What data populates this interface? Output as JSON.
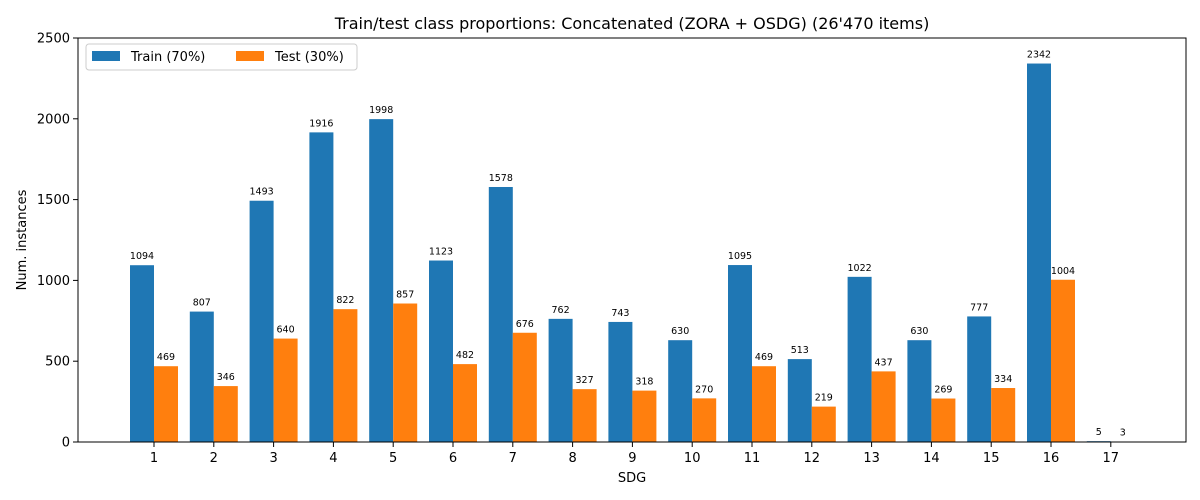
{
  "chart_data": {
    "type": "bar",
    "title": "Train/test class proportions: Concatenated (ZORA + OSDG) (26'470 items)",
    "xlabel": "SDG",
    "ylabel": "Num. instances",
    "categories": [
      "1",
      "2",
      "3",
      "4",
      "5",
      "6",
      "7",
      "8",
      "9",
      "10",
      "11",
      "12",
      "13",
      "14",
      "15",
      "16",
      "17"
    ],
    "series": [
      {
        "name": "Train (70%)",
        "color": "#1f77b4",
        "values": [
          1094,
          807,
          1493,
          1916,
          1998,
          1123,
          1578,
          762,
          743,
          630,
          1095,
          513,
          1022,
          630,
          777,
          2342,
          5
        ]
      },
      {
        "name": "Test (30%)",
        "color": "#ff7f0e",
        "values": [
          469,
          346,
          640,
          822,
          857,
          482,
          676,
          327,
          318,
          270,
          469,
          219,
          437,
          269,
          334,
          1004,
          3
        ]
      }
    ],
    "ylim": [
      0,
      2500
    ],
    "yticks": [
      0,
      500,
      1000,
      1500,
      2000,
      2500
    ],
    "grid": false,
    "legend_position": "top-left"
  }
}
